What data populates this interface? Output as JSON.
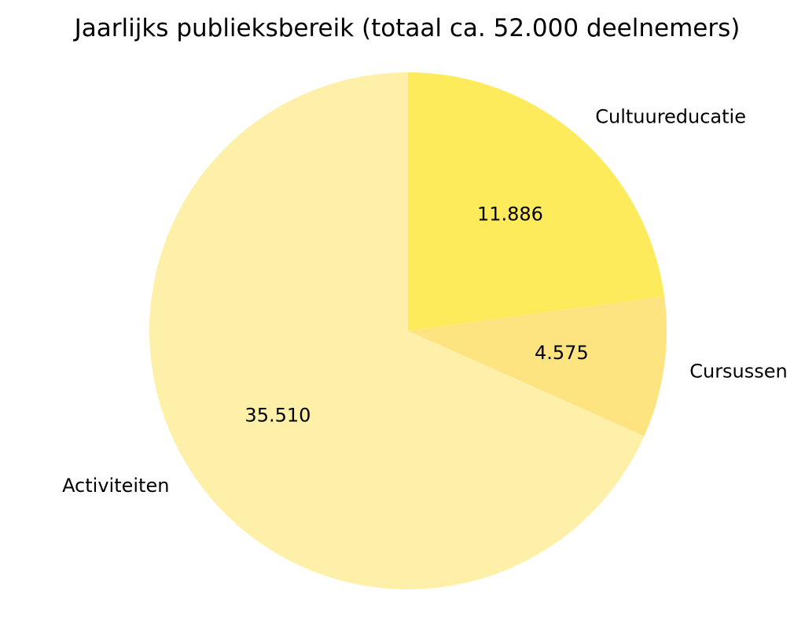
{
  "chart_data": {
    "type": "pie",
    "title": "Jaarlijks publieksbereik (totaal ca. 52.000 deelnemers)",
    "slices": [
      {
        "label": "Activiteiten",
        "value": 35510,
        "value_label": "35.510",
        "color": "#FEF0A8"
      },
      {
        "label": "Cursussen",
        "value": 4575,
        "value_label": "4.575",
        "color": "#FEE480"
      },
      {
        "label": "Cultuureducatie",
        "value": 11886,
        "value_label": "11.886",
        "color": "#FEEB5C"
      }
    ],
    "start_angle_deg": 90,
    "direction": "counterclockwise"
  }
}
